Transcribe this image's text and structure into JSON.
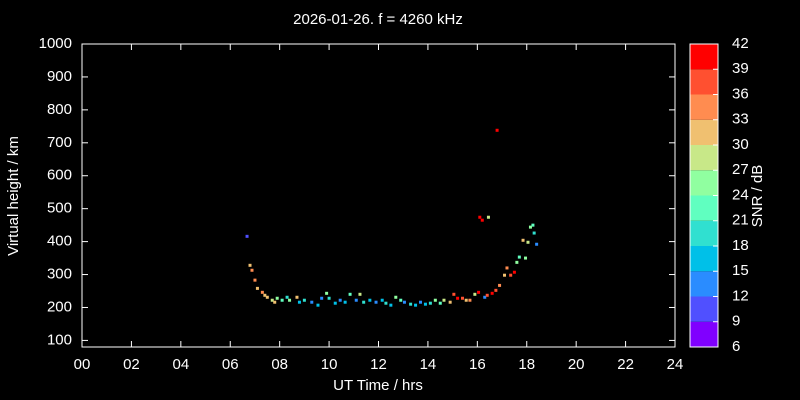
{
  "chart_data": {
    "type": "scatter",
    "title": "2026-01-26. f = 4260 kHz",
    "x_label": "UT Time / hrs",
    "y_label": "Virtual height / km",
    "x": [
      6.68,
      6.8,
      6.88,
      7.0,
      7.1,
      7.3,
      7.4,
      7.5,
      7.7,
      7.8,
      7.9,
      8.1,
      8.3,
      8.4,
      8.7,
      8.8,
      9.0,
      9.3,
      9.55,
      9.7,
      9.9,
      10.0,
      10.25,
      10.45,
      10.65,
      10.85,
      11.1,
      11.25,
      11.4,
      11.65,
      11.9,
      12.15,
      12.3,
      12.5,
      12.7,
      12.9,
      13.05,
      13.3,
      13.5,
      13.7,
      13.9,
      14.1,
      14.3,
      14.5,
      14.65,
      14.9,
      15.05,
      15.2,
      15.4,
      15.55,
      15.7,
      15.9,
      16.05,
      16.1,
      16.2,
      16.45,
      16.3,
      16.4,
      16.6,
      16.75,
      16.8,
      16.9,
      17.1,
      17.2,
      17.35,
      17.5,
      17.6,
      17.7,
      17.85,
      17.95,
      18.05,
      18.15,
      18.25,
      18.3,
      18.4
    ],
    "y": [
      416,
      328,
      313,
      283,
      258,
      246,
      237,
      231,
      222,
      216,
      228,
      222,
      231,
      222,
      231,
      216,
      222,
      216,
      207,
      228,
      243,
      228,
      213,
      222,
      216,
      240,
      222,
      240,
      216,
      222,
      216,
      222,
      213,
      207,
      231,
      222,
      216,
      210,
      207,
      216,
      210,
      213,
      222,
      213,
      222,
      216,
      240,
      228,
      228,
      222,
      222,
      240,
      246,
      474,
      465,
      474,
      231,
      237,
      243,
      252,
      738,
      267,
      298,
      320,
      298,
      307,
      337,
      353,
      404,
      350,
      398,
      444,
      450,
      426,
      392
    ],
    "snr": [
      10,
      30,
      34,
      33,
      31,
      33,
      32,
      30,
      27,
      30,
      24,
      21,
      18,
      24,
      30,
      15,
      18,
      12,
      15,
      12,
      24,
      18,
      15,
      12,
      15,
      21,
      12,
      27,
      18,
      15,
      12,
      15,
      18,
      15,
      24,
      21,
      12,
      18,
      15,
      12,
      15,
      18,
      24,
      21,
      27,
      30,
      36,
      39,
      36,
      30,
      33,
      27,
      39,
      39,
      39,
      27,
      12,
      36,
      39,
      36,
      39,
      33,
      30,
      33,
      36,
      39,
      24,
      21,
      30,
      24,
      27,
      24,
      21,
      18,
      12
    ],
    "xlim": [
      0,
      24
    ],
    "ylim": [
      80,
      1000
    ],
    "xticks": [
      {
        "value": 0,
        "label": "00"
      },
      {
        "value": 2,
        "label": "02"
      },
      {
        "value": 4,
        "label": "04"
      },
      {
        "value": 6,
        "label": "06"
      },
      {
        "value": 8,
        "label": "08"
      },
      {
        "value": 10,
        "label": "10"
      },
      {
        "value": 12,
        "label": "12"
      },
      {
        "value": 14,
        "label": "14"
      },
      {
        "value": 16,
        "label": "16"
      },
      {
        "value": 18,
        "label": "18"
      },
      {
        "value": 20,
        "label": "20"
      },
      {
        "value": 22,
        "label": "22"
      },
      {
        "value": 24,
        "label": "24"
      }
    ],
    "yticks": [
      100,
      200,
      300,
      400,
      500,
      600,
      700,
      800,
      900,
      1000
    ],
    "colorbar": {
      "label": "SNR / dB",
      "lim": [
        6,
        42
      ],
      "ticks": [
        6,
        9,
        12,
        15,
        18,
        21,
        24,
        27,
        30,
        33,
        36,
        39,
        42
      ],
      "colors": [
        "#8000ff",
        "#5050ff",
        "#2a8cff",
        "#00c0e8",
        "#30e0d0",
        "#60ffc0",
        "#90ffa0",
        "#c8e888",
        "#f0c070",
        "#ff8c50",
        "#ff5030",
        "#ff0000"
      ]
    }
  }
}
